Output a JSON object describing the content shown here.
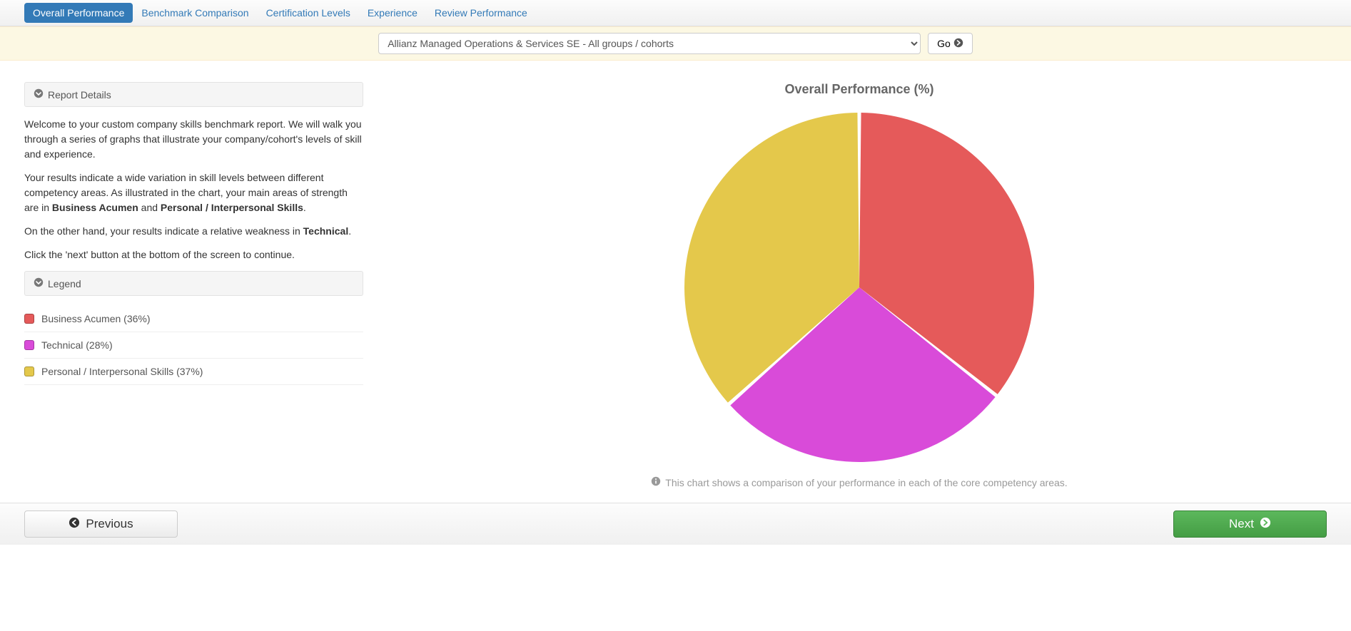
{
  "nav": {
    "tabs": [
      {
        "label": "Overall Performance",
        "active": true
      },
      {
        "label": "Benchmark Comparison",
        "active": false
      },
      {
        "label": "Certification Levels",
        "active": false
      },
      {
        "label": "Experience",
        "active": false
      },
      {
        "label": "Review Performance",
        "active": false
      }
    ]
  },
  "filter": {
    "selected": "Allianz Managed Operations & Services SE - All groups / cohorts",
    "go_label": "Go"
  },
  "report": {
    "header": "Report Details",
    "p1": "Welcome to your custom company skills benchmark report. We will walk you through a series of graphs that illustrate your company/cohort's levels of skill and experience.",
    "p2a": "Your results indicate a wide variation in skill levels between different competency areas. As illustrated in the chart, your main areas of strength are in ",
    "p2b1": "Business Acumen",
    "p2c": " and ",
    "p2b2": "Personal / Interpersonal Skills",
    "p2d": ".",
    "p3a": "On the other hand, your results indicate a relative weakness in ",
    "p3b": "Technical",
    "p3c": ".",
    "p4": "Click the 'next' button at the bottom of the screen to continue."
  },
  "legend": {
    "header": "Legend",
    "items": [
      {
        "label": "Business Acumen (36%)",
        "color": "#e55a5a"
      },
      {
        "label": "Technical (28%)",
        "color": "#d94bd9"
      },
      {
        "label": "Personal / Interpersonal Skills (37%)",
        "color": "#e4c84b"
      }
    ]
  },
  "chart": {
    "type": "pie",
    "title": "Overall Performance (%)",
    "caption": "This chart shows a comparison of your performance in each of the core competency areas.",
    "radius": 245,
    "gap_deg": 1.2,
    "background_color": "#ffffff",
    "slices": [
      {
        "label": "Business Acumen",
        "value": 36,
        "color": "#e55a5a"
      },
      {
        "label": "Technical",
        "value": 28,
        "color": "#d94bd9"
      },
      {
        "label": "Personal / Interpersonal Skills",
        "value": 37,
        "color": "#e4c84b"
      }
    ],
    "title_color": "#666666",
    "title_fontsize": 18,
    "caption_color": "#999999"
  },
  "footer": {
    "prev": "Previous",
    "next": "Next"
  },
  "colors": {
    "link": "#337ab7",
    "filter_bg": "#fcf8e3",
    "panel_bg": "#f5f5f5"
  }
}
